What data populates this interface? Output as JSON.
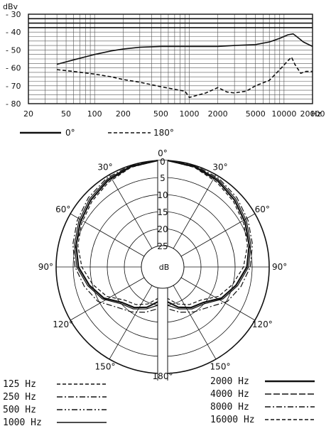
{
  "chart_data": [
    {
      "type": "line",
      "ylabel": "dBv",
      "xlabel": "Hz",
      "x_scale": "log",
      "xlim": [
        20,
        20000
      ],
      "ylim": [
        -80,
        -30
      ],
      "grid": true,
      "x_ticks": [
        {
          "value": 20,
          "label": "20"
        },
        {
          "value": 50,
          "label": "50"
        },
        {
          "value": 100,
          "label": "100"
        },
        {
          "value": 200,
          "label": "200"
        },
        {
          "value": 500,
          "label": "500"
        },
        {
          "value": 1000,
          "label": "1000"
        },
        {
          "value": 2000,
          "label": "2000"
        },
        {
          "value": 5000,
          "label": "5000"
        },
        {
          "value": 10000,
          "label": "10000"
        },
        {
          "value": 20000,
          "label": "20000"
        }
      ],
      "y_ticks": [
        {
          "value": -30,
          "label": "- 30"
        },
        {
          "value": -40,
          "label": "- 40"
        },
        {
          "value": -50,
          "label": "- 50"
        },
        {
          "value": -60,
          "label": "- 60"
        },
        {
          "value": -70,
          "label": "- 70"
        },
        {
          "value": -80,
          "label": "- 80"
        }
      ],
      "legend": [
        {
          "label": "0°",
          "style": "solid"
        },
        {
          "label": "180°",
          "style": "dashed"
        }
      ],
      "series": [
        {
          "style": "solid",
          "x": [
            40,
            60,
            100,
            150,
            200,
            300,
            500,
            700,
            1000,
            2000,
            3000,
            5000,
            7000,
            9000,
            11000,
            12500,
            14000,
            16000,
            20000
          ],
          "y": [
            -58,
            -55.5,
            -52.5,
            -50.5,
            -49.5,
            -48.5,
            -48,
            -48,
            -48,
            -48,
            -47.5,
            -47,
            -45.5,
            -43.5,
            -41.5,
            -41,
            -43,
            -45.5,
            -48
          ]
        },
        {
          "style": "dashed",
          "x": [
            40,
            60,
            100,
            150,
            200,
            300,
            500,
            700,
            900,
            1000,
            1500,
            2000,
            2500,
            3000,
            4000,
            5000,
            7000,
            9000,
            11000,
            12000,
            13000,
            15000,
            17000,
            20000
          ],
          "y": [
            -61,
            -62,
            -63.5,
            -65,
            -66.5,
            -68,
            -70.5,
            -72,
            -73,
            -76.5,
            -74,
            -71,
            -73.5,
            -74,
            -73,
            -70,
            -67,
            -61,
            -56,
            -54,
            -58,
            -63,
            -62,
            -62
          ]
        }
      ]
    },
    {
      "type": "polar",
      "r_ticks": [
        {
          "value": 0,
          "label": "0"
        },
        {
          "value": 5,
          "label": "5"
        },
        {
          "value": 10,
          "label": "10"
        },
        {
          "value": 15,
          "label": "15"
        },
        {
          "value": 20,
          "label": "20"
        },
        {
          "value": 25,
          "label": "25"
        }
      ],
      "r_unit": "dB",
      "angle_labels": [
        {
          "angle": 0,
          "label": "0°"
        },
        {
          "angle": -30,
          "label": "30°"
        },
        {
          "angle": 30,
          "label": "30°"
        },
        {
          "angle": -60,
          "label": "60°"
        },
        {
          "angle": 60,
          "label": "60°"
        },
        {
          "angle": -90,
          "label": "90°"
        },
        {
          "angle": 90,
          "label": "90°"
        },
        {
          "angle": -120,
          "label": "120°"
        },
        {
          "angle": 120,
          "label": "120°"
        },
        {
          "angle": -150,
          "label": "150°"
        },
        {
          "angle": 150,
          "label": "150°"
        },
        {
          "angle": 180,
          "label": "180°"
        }
      ],
      "legend_left": [
        {
          "label": "125  Hz",
          "style": "dashed"
        },
        {
          "label": "250  Hz",
          "style": "dashdot"
        },
        {
          "label": "500  Hz",
          "style": "dashdotdot"
        },
        {
          "label": "1000  Hz",
          "style": "solid-thin"
        }
      ],
      "legend_right": [
        {
          "label": "2000  Hz",
          "style": "solid-thick"
        },
        {
          "label": "4000  Hz",
          "style": "longdash"
        },
        {
          "label": "8000  Hz",
          "style": "dashdot"
        },
        {
          "label": "16000  Hz",
          "style": "dashed"
        }
      ],
      "series": [
        {
          "style": "solid-thick",
          "theta": [
            0,
            15,
            30,
            45,
            60,
            75,
            90,
            105,
            120,
            135,
            150,
            165,
            180
          ],
          "r_db": [
            0,
            0.8,
            2,
            3.5,
            5,
            6.5,
            8,
            10.5,
            13,
            16.5,
            17.5,
            19,
            21
          ]
        },
        {
          "style": "solid-thin",
          "theta": [
            0,
            15,
            30,
            45,
            60,
            75,
            90,
            105,
            120,
            135,
            150,
            165,
            180
          ],
          "r_db": [
            0,
            0.6,
            1.6,
            3,
            4.5,
            6,
            7.5,
            10,
            12.5,
            16,
            17,
            18.5,
            20
          ]
        },
        {
          "style": "dashed",
          "theta": [
            0,
            15,
            30,
            45,
            60,
            75,
            90,
            105,
            120,
            135,
            150,
            165,
            180
          ],
          "r_db": [
            0,
            1,
            2.5,
            4,
            5.5,
            7,
            9,
            11.5,
            14,
            17.5,
            18.5,
            20,
            22
          ]
        },
        {
          "style": "dashdot",
          "theta": [
            0,
            15,
            30,
            45,
            60,
            75,
            90,
            105,
            120,
            135,
            150,
            165,
            180
          ],
          "r_db": [
            0,
            0.4,
            1.2,
            2.5,
            4,
            5.5,
            7,
            9,
            11,
            14.5,
            16,
            17.5,
            19
          ]
        }
      ]
    }
  ]
}
